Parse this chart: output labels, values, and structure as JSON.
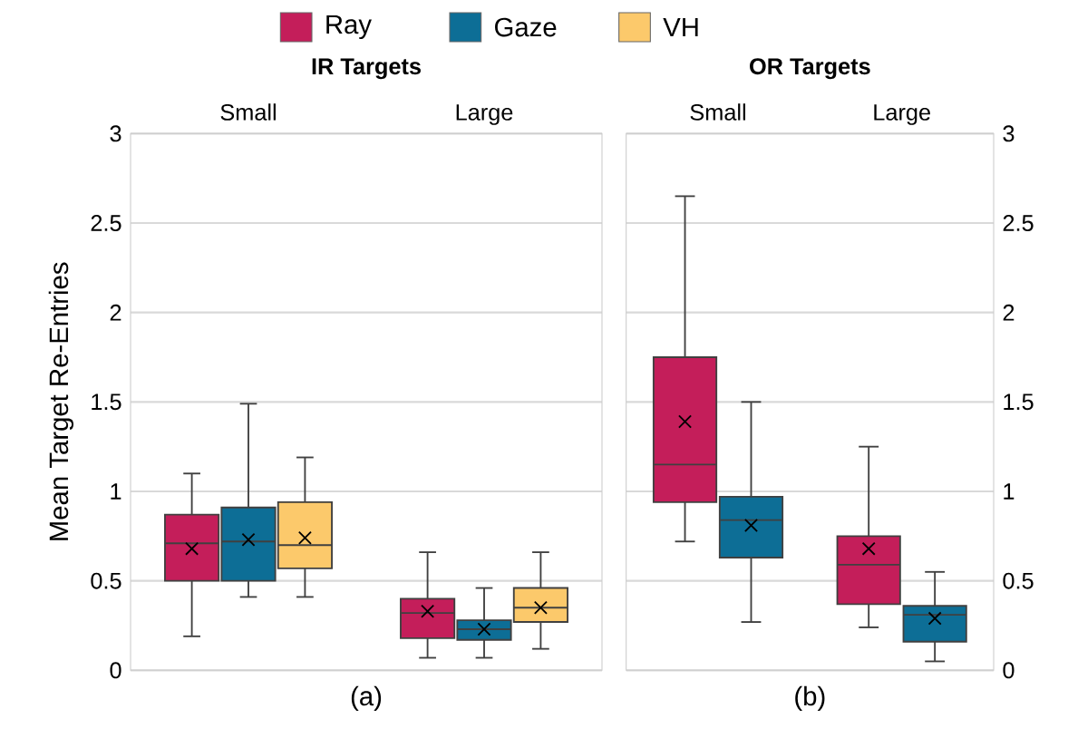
{
  "chart_data": [
    {
      "type": "box",
      "title": "IR Targets",
      "xlabel": "(a)",
      "ylabel": "Mean Target Re-Entries",
      "categories": [
        "Small",
        "Large"
      ],
      "ylim": [
        0,
        3
      ],
      "yticks": [
        0,
        0.5,
        1,
        1.5,
        2,
        2.5,
        3
      ],
      "grid": "y",
      "legend": "top",
      "series": [
        {
          "name": "Ray",
          "color": "#c41e5a",
          "boxes": [
            {
              "low": 0.19,
              "q1": 0.5,
              "median": 0.71,
              "q3": 0.87,
              "high": 1.1,
              "mean": 0.68
            },
            {
              "low": 0.07,
              "q1": 0.18,
              "median": 0.32,
              "q3": 0.4,
              "high": 0.66,
              "mean": 0.33
            }
          ]
        },
        {
          "name": "Gaze",
          "color": "#0d6e96",
          "boxes": [
            {
              "low": 0.41,
              "q1": 0.5,
              "median": 0.72,
              "q3": 0.91,
              "high": 1.49,
              "mean": 0.73
            },
            {
              "low": 0.07,
              "q1": 0.17,
              "median": 0.23,
              "q3": 0.28,
              "high": 0.46,
              "mean": 0.23
            }
          ]
        },
        {
          "name": "VH",
          "color": "#fcc96b",
          "boxes": [
            {
              "low": 0.41,
              "q1": 0.57,
              "median": 0.7,
              "q3": 0.94,
              "high": 1.19,
              "mean": 0.74
            },
            {
              "low": 0.12,
              "q1": 0.27,
              "median": 0.35,
              "q3": 0.46,
              "high": 0.66,
              "mean": 0.35
            }
          ]
        }
      ]
    },
    {
      "type": "box",
      "title": "OR Targets",
      "xlabel": "(b)",
      "categories": [
        "Small",
        "Large"
      ],
      "ylim": [
        0,
        3
      ],
      "yticks": [
        0,
        0.5,
        1,
        1.5,
        2,
        2.5,
        3
      ],
      "grid": "y",
      "series": [
        {
          "color": "#c41e5a",
          "boxes": [
            {
              "low": 0.72,
              "q1": 0.94,
              "median": 1.15,
              "q3": 1.75,
              "high": 2.65,
              "mean": 1.39
            },
            {
              "low": 0.24,
              "q1": 0.37,
              "median": 0.59,
              "q3": 0.75,
              "high": 1.25,
              "mean": 0.68
            }
          ]
        },
        {
          "color": "#0d6e96",
          "boxes": [
            {
              "low": 0.27,
              "q1": 0.63,
              "median": 0.84,
              "q3": 0.97,
              "high": 1.5,
              "mean": 0.81
            },
            {
              "low": 0.05,
              "q1": 0.16,
              "median": 0.31,
              "q3": 0.36,
              "high": 0.55,
              "mean": 0.29
            }
          ]
        }
      ]
    }
  ]
}
